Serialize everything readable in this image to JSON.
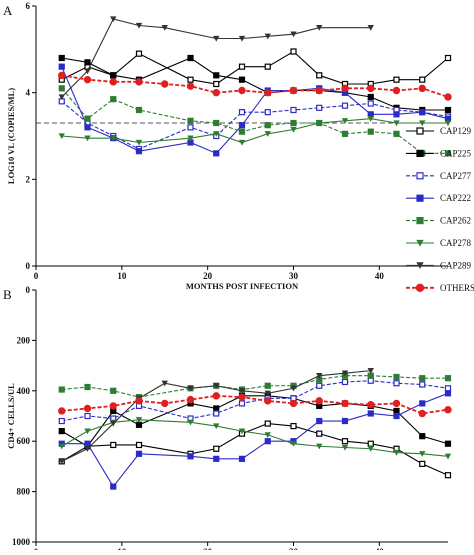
{
  "figure": {
    "legend": [
      {
        "name": "CAP129",
        "color": "#000000",
        "marker": "square-open",
        "dash": false
      },
      {
        "name": "CAP225",
        "color": "#000000",
        "marker": "square",
        "dash": false
      },
      {
        "name": "CAP277",
        "color": "#2b2bc8",
        "marker": "square-open",
        "dash": true
      },
      {
        "name": "CAP222",
        "color": "#2b2bc8",
        "marker": "square",
        "dash": false
      },
      {
        "name": "CAP262",
        "color": "#2e7d32",
        "marker": "square",
        "dash": true
      },
      {
        "name": "CAP278",
        "color": "#2e7d32",
        "marker": "triangle-down",
        "dash": false
      },
      {
        "name": "CAP289",
        "color": "#333333",
        "marker": "triangle-down",
        "dash": false
      },
      {
        "name": "OTHERS",
        "color": "#e02020",
        "marker": "circle",
        "dash": true
      }
    ]
  },
  "chart_data": [
    {
      "panel": "A",
      "type": "line",
      "xlabel": "MONTHS POST INFECTION",
      "ylabel": "LOG10 VL (COPIES/ML)",
      "xlim": [
        0,
        48
      ],
      "ylim": [
        0,
        6
      ],
      "xticks": [
        0,
        10,
        20,
        30,
        40
      ],
      "yticks": [
        0,
        2,
        4,
        6
      ],
      "reference_line_y": 3.3,
      "series": [
        {
          "name": "CAP129",
          "x": [
            3,
            6,
            9,
            12,
            18,
            21,
            24,
            27,
            30,
            33,
            36,
            39,
            42,
            45,
            48
          ],
          "y": [
            4.3,
            4.6,
            4.4,
            4.9,
            4.3,
            4.2,
            4.6,
            4.6,
            4.95,
            4.4,
            4.2,
            4.2,
            4.3,
            4.3,
            4.8
          ]
        },
        {
          "name": "CAP225",
          "x": [
            3,
            6,
            9,
            12,
            18,
            21,
            24,
            27,
            30,
            33,
            36,
            39,
            42,
            45,
            48
          ],
          "y": [
            4.8,
            4.7,
            4.4,
            4.3,
            4.8,
            4.4,
            4.3,
            4.0,
            4.05,
            4.05,
            4.0,
            3.9,
            3.65,
            3.6,
            3.6
          ]
        },
        {
          "name": "CAP277",
          "x": [
            3,
            6,
            9,
            12,
            18,
            21,
            24,
            27,
            30,
            33,
            36,
            39,
            42,
            45,
            48
          ],
          "y": [
            3.8,
            3.3,
            3.0,
            2.7,
            3.2,
            3.0,
            3.55,
            3.55,
            3.6,
            3.65,
            3.7,
            3.75,
            3.6,
            3.55,
            3.45
          ]
        },
        {
          "name": "CAP222",
          "x": [
            3,
            6,
            9,
            12,
            18,
            21,
            24,
            27,
            30,
            33,
            36,
            39,
            42,
            45,
            48
          ],
          "y": [
            4.6,
            3.2,
            2.95,
            2.65,
            2.85,
            2.6,
            3.25,
            4.05,
            4.05,
            4.1,
            4.0,
            3.5,
            3.5,
            3.55,
            3.4
          ]
        },
        {
          "name": "CAP262",
          "x": [
            3,
            6,
            9,
            12,
            18,
            21,
            24,
            27,
            30,
            33,
            36,
            39,
            42,
            45,
            48
          ],
          "y": [
            4.1,
            3.4,
            3.85,
            3.6,
            3.35,
            3.3,
            3.1,
            3.25,
            3.3,
            3.3,
            3.05,
            3.1,
            3.05,
            2.6,
            2.6
          ]
        },
        {
          "name": "CAP278",
          "x": [
            3,
            6,
            9,
            12,
            18,
            21,
            24,
            27,
            30,
            33,
            36,
            39,
            42,
            45,
            48
          ],
          "y": [
            3.0,
            2.95,
            2.95,
            2.85,
            2.95,
            3.05,
            2.85,
            3.05,
            3.15,
            3.3,
            3.35,
            3.4,
            3.3,
            3.3,
            3.3
          ]
        },
        {
          "name": "CAP289",
          "x": [
            3,
            6,
            9,
            12,
            15,
            21,
            24,
            27,
            30,
            33,
            39
          ],
          "y": [
            3.9,
            4.5,
            5.7,
            5.55,
            5.5,
            5.25,
            5.25,
            5.3,
            5.35,
            5.5,
            5.5
          ]
        },
        {
          "name": "OTHERS",
          "x": [
            3,
            6,
            9,
            12,
            15,
            18,
            21,
            24,
            27,
            30,
            33,
            36,
            39,
            42,
            45,
            48
          ],
          "y": [
            4.4,
            4.3,
            4.25,
            4.25,
            4.2,
            4.15,
            4.0,
            4.05,
            4.0,
            4.05,
            4.05,
            4.1,
            4.1,
            4.05,
            4.1,
            3.9
          ]
        }
      ]
    },
    {
      "panel": "B",
      "type": "line",
      "xlabel": "MONTHS POST INFECTION",
      "ylabel": "CD4+ CELLS/UL",
      "xlim": [
        0,
        48
      ],
      "ylim": [
        1000,
        0
      ],
      "ytick_labels": [
        "0",
        "200",
        "400",
        "600",
        "800",
        "1000"
      ],
      "xticks": [
        0,
        10,
        20,
        30,
        40
      ],
      "series": [
        {
          "name": "CAP129",
          "x": [
            3,
            6,
            9,
            12,
            18,
            21,
            24,
            27,
            30,
            33,
            36,
            39,
            42,
            45,
            48
          ],
          "y": [
            680,
            620,
            615,
            615,
            650,
            630,
            570,
            530,
            540,
            570,
            600,
            610,
            630,
            690,
            735
          ]
        },
        {
          "name": "CAP225",
          "x": [
            3,
            6,
            9,
            12,
            18,
            21,
            24,
            27,
            30,
            33,
            36,
            39,
            42,
            45,
            48
          ],
          "y": [
            560,
            620,
            480,
            535,
            450,
            470,
            420,
            420,
            430,
            460,
            450,
            460,
            480,
            580,
            610
          ]
        },
        {
          "name": "CAP277",
          "x": [
            3,
            6,
            9,
            12,
            18,
            21,
            24,
            27,
            30,
            33,
            36,
            39,
            42,
            45,
            48
          ],
          "y": [
            520,
            500,
            510,
            460,
            510,
            490,
            450,
            430,
            430,
            380,
            365,
            360,
            370,
            375,
            390
          ]
        },
        {
          "name": "CAP222",
          "x": [
            3,
            6,
            9,
            12,
            18,
            21,
            24,
            27,
            30,
            33,
            36,
            39,
            42,
            45,
            48
          ],
          "y": [
            610,
            610,
            780,
            650,
            660,
            670,
            670,
            600,
            600,
            520,
            520,
            490,
            500,
            450,
            410
          ]
        },
        {
          "name": "CAP262",
          "x": [
            3,
            6,
            9,
            12,
            18,
            21,
            24,
            27,
            30,
            33,
            36,
            39,
            42,
            45,
            48
          ],
          "y": [
            395,
            385,
            400,
            425,
            390,
            380,
            395,
            380,
            380,
            355,
            340,
            340,
            345,
            350,
            350
          ]
        },
        {
          "name": "CAP278",
          "x": [
            3,
            6,
            9,
            12,
            18,
            21,
            24,
            27,
            30,
            33,
            36,
            39,
            42,
            45,
            48
          ],
          "y": [
            620,
            560,
            525,
            515,
            525,
            540,
            560,
            575,
            610,
            620,
            625,
            630,
            645,
            650,
            660
          ]
        },
        {
          "name": "CAP289",
          "x": [
            3,
            6,
            9,
            12,
            15,
            18,
            21,
            24,
            27,
            30,
            33,
            36,
            39
          ],
          "y": [
            680,
            630,
            530,
            430,
            370,
            390,
            380,
            400,
            410,
            390,
            340,
            330,
            320
          ]
        },
        {
          "name": "OTHERS",
          "x": [
            3,
            6,
            9,
            12,
            15,
            18,
            21,
            24,
            27,
            30,
            33,
            36,
            39,
            42,
            45,
            48
          ],
          "y": [
            480,
            470,
            460,
            440,
            450,
            435,
            420,
            425,
            440,
            450,
            440,
            450,
            455,
            450,
            490,
            475
          ]
        }
      ]
    }
  ]
}
